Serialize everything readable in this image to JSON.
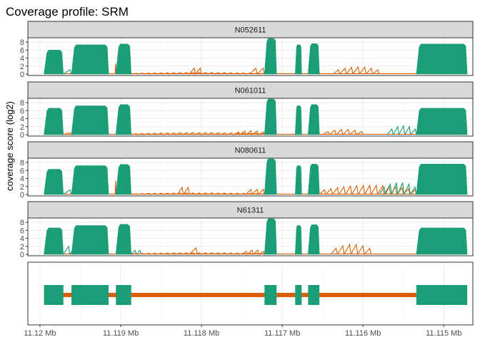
{
  "chart_data": {
    "type": "area",
    "title": "Coverage profile: SRM",
    "ylabel": "coverage score (log2)",
    "ylim": [
      0,
      8.5
    ],
    "yticks": [
      0,
      2,
      4,
      6,
      8
    ],
    "x_reversed": true,
    "xlim": [
      11.12015,
      11.11464
    ],
    "xticks": [
      {
        "value": 11.12,
        "label": "11.12 Mb"
      },
      {
        "value": 11.119,
        "label": "11.119 Mb"
      },
      {
        "value": 11.118,
        "label": "11.118 Mb"
      },
      {
        "value": 11.117,
        "label": "11.117 Mb"
      },
      {
        "value": 11.116,
        "label": "11.116 Mb"
      },
      {
        "value": 11.115,
        "label": "11.115 Mb"
      }
    ],
    "colors": {
      "exon": "#1b9e77",
      "intron": "#d95f02",
      "strip": "#d9d9d9",
      "grid_major": "#ebebeb",
      "grid_minor": "#f5f5f5"
    },
    "exons": [
      [
        11.11995,
        11.11971
      ],
      [
        11.11961,
        11.11915
      ],
      [
        11.11906,
        11.11887
      ],
      [
        11.11722,
        11.11707
      ],
      [
        11.11684,
        11.11676
      ],
      [
        11.11668,
        11.11654
      ],
      [
        11.11534,
        11.11471
      ]
    ],
    "panels": [
      {
        "name": "N052611",
        "exon_levels": [
          6.0,
          7.3,
          7.5,
          9.4,
          7.3,
          7.6,
          7.5
        ],
        "intron_humps": [
          {
            "from": 11.11971,
            "to": 11.11961,
            "peak": 1.1,
            "color": "exon"
          },
          {
            "from": 11.11907,
            "to": 11.11906,
            "peak": 2.6,
            "color": "intron"
          },
          {
            "from": 11.11887,
            "to": 11.11722,
            "peak": 0.4,
            "color": "intron"
          },
          {
            "from": 11.11815,
            "to": 11.118,
            "peak": 1.5,
            "color": "intron"
          },
          {
            "from": 11.1174,
            "to": 11.11722,
            "peak": 1.5,
            "color": "intron"
          },
          {
            "from": 11.11637,
            "to": 11.1158,
            "peak": 1.8,
            "color": "intron"
          }
        ]
      },
      {
        "name": "N061011",
        "exon_levels": [
          6.6,
          7.2,
          7.5,
          9.0,
          7.2,
          7.5,
          6.6
        ],
        "intron_humps": [
          {
            "from": 11.11971,
            "to": 11.11961,
            "peak": 0.5,
            "color": "intron"
          },
          {
            "from": 11.11961,
            "to": 11.1195,
            "peak": 0.5,
            "color": "exon"
          },
          {
            "from": 11.11887,
            "to": 11.11722,
            "peak": 0.5,
            "color": "intron"
          },
          {
            "from": 11.1176,
            "to": 11.11722,
            "peak": 1.0,
            "color": "intron"
          },
          {
            "from": 11.1165,
            "to": 11.116,
            "peak": 1.3,
            "color": "intron"
          },
          {
            "from": 11.1157,
            "to": 11.11534,
            "peak": 2.2,
            "color": "exon"
          }
        ]
      },
      {
        "name": "N080611",
        "exon_levels": [
          6.3,
          7.2,
          7.5,
          9.4,
          7.2,
          7.6,
          7.6
        ],
        "intron_humps": [
          {
            "from": 11.11971,
            "to": 11.11961,
            "peak": 1.2,
            "color": "exon"
          },
          {
            "from": 11.11907,
            "to": 11.11906,
            "peak": 3.5,
            "color": "intron"
          },
          {
            "from": 11.11887,
            "to": 11.11722,
            "peak": 0.4,
            "color": "intron"
          },
          {
            "from": 11.1183,
            "to": 11.11815,
            "peak": 1.8,
            "color": "intron"
          },
          {
            "from": 11.11745,
            "to": 11.11722,
            "peak": 1.3,
            "color": "intron"
          },
          {
            "from": 11.11654,
            "to": 11.11534,
            "peak": 2.3,
            "color": "intron"
          },
          {
            "from": 11.1158,
            "to": 11.11534,
            "peak": 3.0,
            "color": "exon"
          }
        ]
      },
      {
        "name": "N61311",
        "exon_levels": [
          6.6,
          7.2,
          7.5,
          9.2,
          7.2,
          7.4,
          6.6
        ],
        "intron_humps": [
          {
            "from": 11.11971,
            "to": 11.11955,
            "peak": 2.0,
            "color": "exon"
          },
          {
            "from": 11.11887,
            "to": 11.11875,
            "peak": 1.0,
            "color": "exon"
          },
          {
            "from": 11.11887,
            "to": 11.11722,
            "peak": 0.4,
            "color": "intron"
          },
          {
            "from": 11.11815,
            "to": 11.11805,
            "peak": 1.6,
            "color": "intron"
          },
          {
            "from": 11.1175,
            "to": 11.11722,
            "peak": 1.1,
            "color": "intron"
          },
          {
            "from": 11.1164,
            "to": 11.1159,
            "peak": 2.5,
            "color": "intron"
          }
        ]
      }
    ],
    "gene_model": {
      "intron_line": [
        11.11995,
        11.11534
      ],
      "exons": [
        [
          11.11995,
          11.11971
        ],
        [
          11.11961,
          11.11915
        ],
        [
          11.11906,
          11.11887
        ],
        [
          11.11722,
          11.11707
        ],
        [
          11.11684,
          11.11676
        ],
        [
          11.11668,
          11.11654
        ],
        [
          11.11534,
          11.11471
        ]
      ]
    }
  }
}
